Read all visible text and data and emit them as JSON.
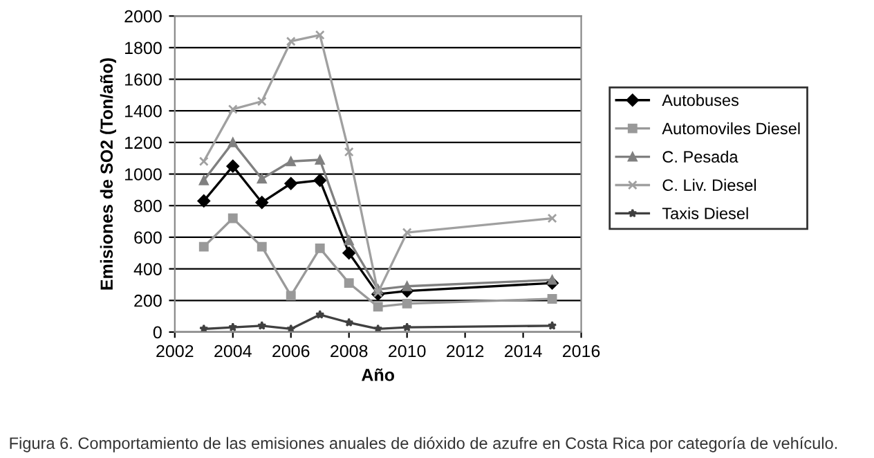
{
  "chart_data": {
    "type": "line",
    "xlabel": "Año",
    "ylabel": "Emisiones de SO2 (Ton/año)",
    "x": [
      2003,
      2004,
      2005,
      2006,
      2007,
      2008,
      2009,
      2010,
      2015
    ],
    "series": [
      {
        "name": "Autobuses",
        "color": "#000000",
        "marker": "diamond",
        "values": [
          830,
          1050,
          820,
          940,
          960,
          500,
          240,
          260,
          310
        ]
      },
      {
        "name": "Automoviles Diesel",
        "color": "#999999",
        "marker": "square",
        "values": [
          540,
          720,
          540,
          230,
          530,
          310,
          160,
          180,
          210
        ]
      },
      {
        "name": "C. Pesada",
        "color": "#808080",
        "marker": "triangle",
        "values": [
          960,
          1200,
          970,
          1080,
          1090,
          580,
          270,
          290,
          330
        ]
      },
      {
        "name": "C. Liv. Diesel",
        "color": "#a0a0a0",
        "marker": "cross",
        "values": [
          1080,
          1410,
          1460,
          1840,
          1880,
          1140,
          250,
          630,
          720
        ]
      },
      {
        "name": "Taxis Diesel",
        "color": "#404040",
        "marker": "star",
        "values": [
          20,
          30,
          40,
          20,
          110,
          60,
          20,
          30,
          40
        ]
      }
    ],
    "xlim": [
      2002,
      2016
    ],
    "xticks": [
      2002,
      2004,
      2006,
      2008,
      2010,
      2012,
      2014,
      2016
    ],
    "ylim": [
      0,
      2000
    ],
    "yticks": [
      0,
      200,
      400,
      600,
      800,
      1000,
      1200,
      1400,
      1600,
      1800,
      2000
    ],
    "grid": "y",
    "legend": "right",
    "line_style": "solid",
    "annotations": [
      "Figura 6. Comportamiento de las emisiones anuales de dióxido de azufre en Costa Rica por categoría de vehículo."
    ]
  }
}
